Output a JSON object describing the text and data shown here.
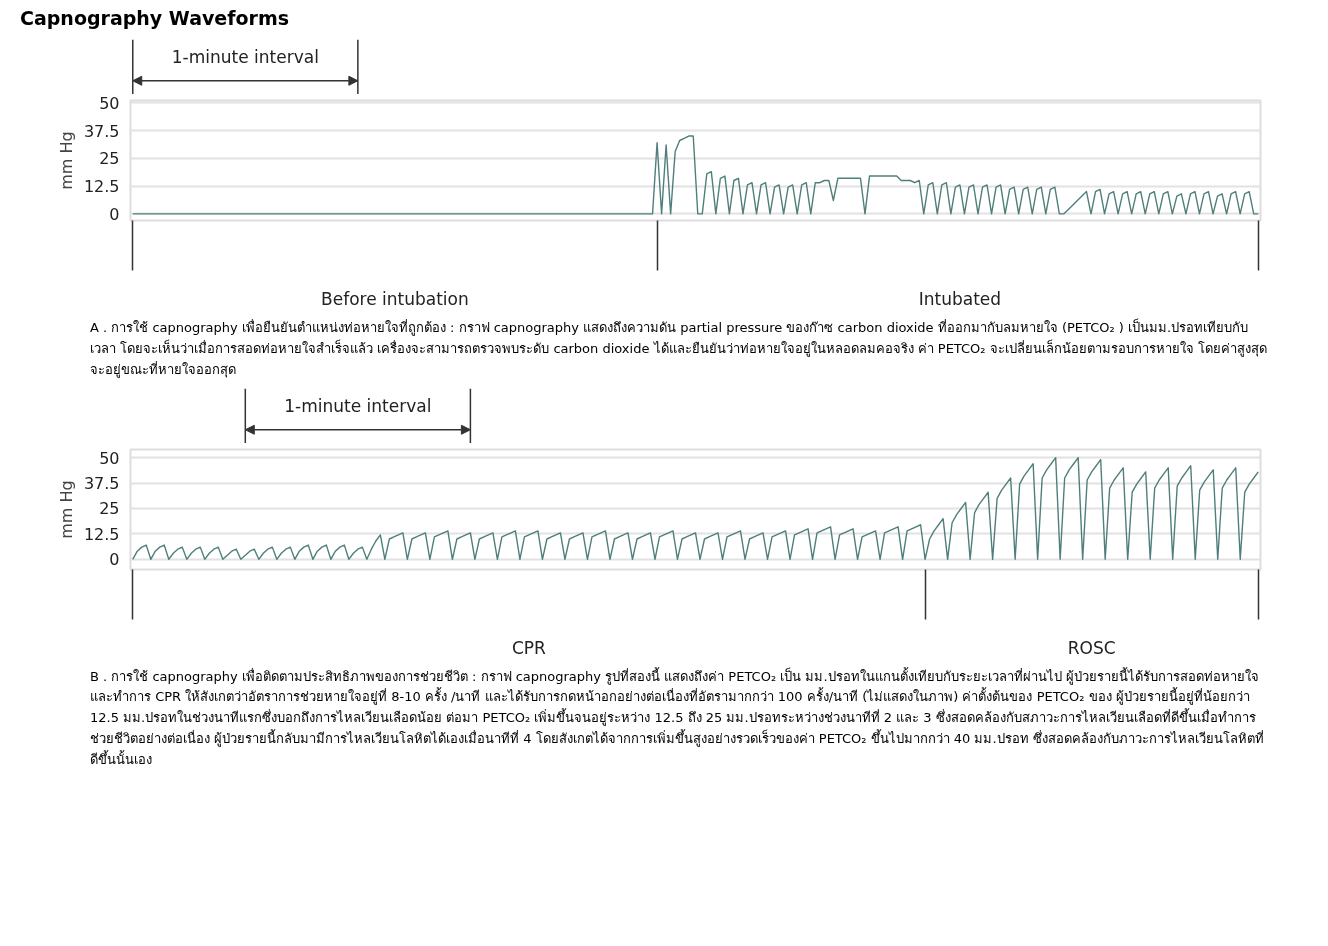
{
  "chart_data": [
    {
      "type": "line",
      "title": "Capnography Waveforms",
      "ylabel": "mm Hg",
      "ylim": [
        -3,
        51
      ],
      "yticks": [
        0,
        12.5,
        25,
        37.5,
        50
      ],
      "grid": "y",
      "categories": [
        null,
        null,
        null,
        null,
        null,
        null,
        null,
        null,
        null,
        null,
        null,
        null,
        null,
        null,
        null,
        null,
        null,
        null,
        null,
        null,
        null,
        null,
        null,
        null,
        null,
        null,
        null,
        null,
        null,
        null,
        null,
        null,
        null,
        null,
        null,
        null,
        null,
        null,
        null,
        null,
        null,
        null,
        null,
        null,
        null,
        null,
        null,
        null,
        null,
        null,
        null,
        null,
        null,
        null,
        null,
        null,
        null,
        null,
        "Before intubation",
        null,
        null,
        null,
        null,
        null,
        null,
        null,
        null,
        null,
        null,
        null,
        null,
        null,
        null,
        null,
        null,
        null,
        null,
        null,
        null,
        null,
        null,
        null,
        null,
        null,
        null,
        null,
        null,
        null,
        null,
        null,
        null,
        null,
        null,
        null,
        null,
        null,
        null,
        null,
        null,
        null,
        null,
        null,
        null,
        null,
        null,
        null,
        null,
        null,
        null,
        null,
        null,
        null,
        null,
        null,
        null,
        null,
        null,
        null,
        null,
        null,
        null,
        null,
        null,
        null,
        null,
        null,
        null,
        null,
        null,
        null,
        null,
        null,
        null,
        null,
        null,
        null,
        null,
        null,
        null,
        null,
        null,
        null,
        null,
        null,
        null,
        null,
        null,
        null,
        null,
        null,
        null,
        null,
        null,
        null,
        null,
        null,
        null,
        null,
        null,
        null,
        null,
        null,
        null,
        null,
        null,
        null,
        null,
        null,
        null,
        null,
        null,
        null,
        null,
        null,
        null,
        null,
        null,
        null,
        null,
        null,
        null,
        null,
        null,
        "Intubated",
        null,
        null,
        null,
        null,
        null,
        null,
        null,
        null,
        null,
        null,
        null,
        null,
        null,
        null,
        null,
        null,
        null,
        null,
        null,
        null,
        null,
        null,
        null,
        null,
        null,
        null,
        null,
        null,
        null,
        null,
        null,
        null,
        null,
        null,
        null,
        null,
        null,
        null,
        null,
        null,
        null,
        null,
        null,
        null,
        null,
        null,
        null,
        null,
        null,
        null,
        null,
        null,
        null,
        null,
        null,
        null,
        null,
        null,
        null,
        null,
        null,
        null,
        null,
        null,
        null,
        null
      ],
      "series": [
        {
          "color": "#4f7f7a",
          "values": [
            0,
            0,
            0,
            0,
            0,
            0,
            0,
            0,
            0,
            0,
            0,
            0,
            0,
            0,
            0,
            0,
            0,
            0,
            0,
            0,
            0,
            0,
            0,
            0,
            0,
            0,
            0,
            0,
            0,
            0,
            0,
            0,
            0,
            0,
            0,
            0,
            0,
            0,
            0,
            0,
            0,
            0,
            0,
            0,
            0,
            0,
            0,
            0,
            0,
            0,
            0,
            0,
            0,
            0,
            0,
            0,
            0,
            0,
            0,
            0,
            0,
            0,
            0,
            0,
            0,
            0,
            0,
            0,
            0,
            0,
            0,
            0,
            0,
            0,
            0,
            0,
            0,
            0,
            0,
            0,
            0,
            0,
            0,
            0,
            0,
            0,
            0,
            0,
            0,
            0,
            0,
            0,
            0,
            0,
            0,
            0,
            0,
            0,
            0,
            0,
            0,
            0,
            0,
            0,
            0,
            0,
            0,
            0,
            0,
            0,
            0,
            0,
            0,
            0,
            0,
            0,
            32,
            0,
            31,
            0,
            28,
            33,
            34,
            35,
            35,
            0,
            0,
            18,
            19,
            0,
            16,
            17,
            0,
            15,
            16,
            0,
            13,
            14,
            0,
            13,
            14,
            0,
            12,
            13,
            0,
            12,
            13,
            0,
            13,
            14,
            0,
            14,
            14,
            15,
            15,
            6,
            16,
            16,
            16,
            16,
            16,
            16,
            0,
            17,
            17,
            17,
            17,
            17,
            17,
            17,
            15,
            15,
            15,
            14,
            15,
            0,
            13,
            14,
            0,
            13,
            14,
            0,
            12,
            13,
            0,
            12,
            13,
            0,
            12,
            13,
            0,
            12,
            13,
            0,
            11,
            12,
            0,
            11,
            12,
            0,
            11,
            12,
            0,
            11,
            12,
            0,
            0,
            2,
            4,
            6,
            8,
            10,
            0,
            10,
            11,
            0,
            9,
            10,
            0,
            9,
            10,
            0,
            9,
            10,
            0,
            9,
            10,
            0,
            9,
            10,
            0,
            8,
            9,
            0,
            9,
            10,
            0,
            9,
            10,
            0,
            8,
            9,
            0,
            9,
            10,
            0,
            9,
            10,
            0,
            0
          ]
        }
      ],
      "annotations": [
        "1-minute interval",
        "A . การใช้ capnography เพื่อยืนยันตำแหน่งท่อหายใจที่ถูกต้อง : กราฟ capnography แสดงถึงความดัน partial pressure ของก๊าซ carbon dioxide ที่ออกมากับลมหายใจ (PETCO₂ ) เป็นมม.ปรอทเทียบกับเวลา โดยจะเห็นว่าเมื่อการสอดท่อหายใจสำเร็จแล้ว เครื่องจะสามารถตรวจพบระดับ carbon dioxide ได้และยืนยันว่าท่อหายใจอยู่ในหลอดลมคอจริง ค่า PETCO₂ จะเปลี่ยนเล็กน้อยตามรอบการหายใจ โดยค่าสูงสุดจะอยู่ขณะที่หายใจออกสุด"
      ]
    },
    {
      "type": "line",
      "ylabel": "mm Hg",
      "ylim": [
        -5,
        54
      ],
      "yticks": [
        0,
        12.5,
        25,
        37.5,
        50
      ],
      "grid": "y",
      "categories": [
        null,
        null,
        null,
        null,
        null,
        null,
        null,
        null,
        null,
        null,
        null,
        null,
        null,
        null,
        null,
        null,
        null,
        null,
        null,
        null,
        null,
        null,
        null,
        null,
        null,
        null,
        null,
        null,
        null,
        null,
        null,
        null,
        null,
        null,
        null,
        null,
        null,
        null,
        null,
        null,
        null,
        null,
        null,
        null,
        null,
        null,
        null,
        null,
        null,
        null,
        null,
        null,
        null,
        null,
        null,
        null,
        null,
        null,
        null,
        null,
        null,
        null,
        null,
        null,
        null,
        null,
        null,
        null,
        null,
        null,
        null,
        null,
        null,
        null,
        null,
        null,
        null,
        null,
        null,
        null,
        null,
        null,
        null,
        null,
        null,
        null,
        null,
        null,
        "CPR",
        null,
        null,
        null,
        null,
        null,
        null,
        null,
        null,
        null,
        null,
        null,
        null,
        null,
        null,
        null,
        null,
        null,
        null,
        null,
        null,
        null,
        null,
        null,
        null,
        null,
        null,
        null,
        null,
        null,
        null,
        null,
        null,
        null,
        null,
        null,
        null,
        null,
        null,
        null,
        null,
        null,
        null,
        null,
        null,
        null,
        null,
        null,
        null,
        null,
        null,
        null,
        null,
        null,
        null,
        null,
        null,
        null,
        null,
        null,
        null,
        null,
        null,
        null,
        null,
        null,
        null,
        null,
        null,
        null,
        null,
        null,
        null,
        null,
        null,
        null,
        null,
        null,
        null,
        null,
        null,
        null,
        null,
        null,
        null,
        null,
        null,
        null,
        null,
        null,
        null,
        null,
        null,
        null,
        null,
        null,
        null,
        null,
        null,
        null,
        null,
        null,
        null,
        null,
        null,
        null,
        null,
        null,
        null,
        null,
        null,
        null,
        null,
        null,
        null,
        null,
        null,
        null,
        null,
        null,
        null,
        null,
        null,
        null,
        null,
        "ROSC",
        null,
        null,
        null,
        null,
        null,
        null,
        null,
        null,
        null,
        null,
        null,
        null,
        null,
        null,
        null,
        null,
        null,
        null,
        null,
        null,
        null,
        null,
        null,
        null,
        null,
        null,
        null,
        null,
        null,
        null,
        null,
        null,
        null,
        null,
        null,
        null,
        null
      ],
      "series": [
        {
          "color": "#4f7f7a",
          "values": [
            0,
            4,
            6,
            7,
            0,
            4,
            6,
            7,
            0,
            3,
            5,
            6,
            0,
            3,
            5,
            6,
            0,
            3,
            5,
            6,
            0,
            2,
            4,
            5,
            0,
            2,
            4,
            5,
            0,
            3,
            5,
            6,
            0,
            3,
            5,
            6,
            0,
            4,
            6,
            7,
            0,
            4,
            6,
            7,
            0,
            4,
            6,
            7,
            0,
            3,
            5,
            6,
            0,
            5,
            9,
            12,
            0,
            10,
            11,
            12,
            13,
            0,
            10,
            11,
            12,
            13,
            0,
            11,
            12,
            13,
            14,
            0,
            10,
            11,
            12,
            13,
            0,
            10,
            11,
            12,
            13,
            0,
            11,
            12,
            13,
            14,
            0,
            11,
            12,
            13,
            14,
            0,
            10,
            11,
            12,
            13,
            0,
            10,
            11,
            12,
            13,
            0,
            11,
            12,
            13,
            14,
            0,
            10,
            11,
            12,
            13,
            0,
            10,
            11,
            12,
            13,
            0,
            11,
            12,
            13,
            14,
            0,
            10,
            11,
            12,
            13,
            0,
            10,
            11,
            12,
            13,
            0,
            11,
            12,
            13,
            14,
            0,
            10,
            11,
            12,
            13,
            0,
            11,
            12,
            13,
            14,
            0,
            12,
            13,
            14,
            15,
            0,
            13,
            14,
            15,
            16,
            0,
            12,
            13,
            14,
            15,
            0,
            11,
            12,
            13,
            14,
            0,
            13,
            14,
            15,
            16,
            0,
            14,
            15,
            16,
            17,
            0,
            10,
            14,
            17,
            20,
            0,
            18,
            22,
            25,
            28,
            0,
            23,
            27,
            30,
            33,
            0,
            30,
            34,
            37,
            40,
            0,
            37,
            41,
            44,
            47,
            0,
            40,
            44,
            47,
            50,
            0,
            40,
            44,
            47,
            50,
            0,
            39,
            43,
            46,
            49,
            0,
            35,
            39,
            42,
            45,
            0,
            33,
            37,
            40,
            43,
            0,
            35,
            39,
            42,
            45,
            0,
            36,
            40,
            43,
            46,
            0,
            34,
            38,
            41,
            44,
            0,
            35,
            39,
            42,
            45,
            0,
            33,
            37,
            40,
            43
          ]
        }
      ],
      "annotations": [
        "1-minute interval",
        "B . การใช้ capnography เพื่อติดตามประสิทธิภาพของการช่วยชีวิต : กราฟ capnography รูปที่สองนี้ แสดงถึงค่า PETCO₂ เป็น มม.ปรอทในแกนตั้งเทียบกับระยะเวลาที่ผ่านไป ผู้ป่วยรายนี้ได้รับการสอดท่อหายใจและทำการ CPR ให้สังเกตว่าอัตราการช่วยหายใจอยู่ที่ 8-10 ครั้ง /นาที และได้รับการกดหน้าอกอย่างต่อเนื่องที่อัตรามากกว่า 100 ครั้ง/นาที (ไม่แสดงในภาพ) ค่าตั้งต้นของ PETCO₂ ของ ผู้ป่วยรายนี้อยู่ที่น้อยกว่า 12.5 มม.ปรอทในช่วงนาทีแรกซึ่งบอกถึงการไหลเวียนเลือดน้อย ต่อมา PETCO₂ เพิ่มขึ้นจนอยู่ระหว่าง 12.5 ถึง 25 มม.ปรอทระหว่างช่วงนาทีที่ 2 และ 3 ซึ่งสอดคล้องกับสภาวะการไหลเวียนเลือดที่ดีขึ้นเมื่อทำการช่วยชีวิตอย่างต่อเนื่อง ผู้ป่วยรายนี้กลับมามีการไหลเวียนโลหิตได้เองเมื่อนาทีที่ 4 โดยสังเกตได้จากการเพิ่มขึ้นสูงอย่างรวดเร็วของค่า PETCO₂ ขึ้นไปมากกว่า 40 มม.ปรอท ซึ่งสอดคล้องกับภาวะการไหลเวียนโลหิตที่ดีขึ้นนั้นเอง"
      ]
    }
  ]
}
